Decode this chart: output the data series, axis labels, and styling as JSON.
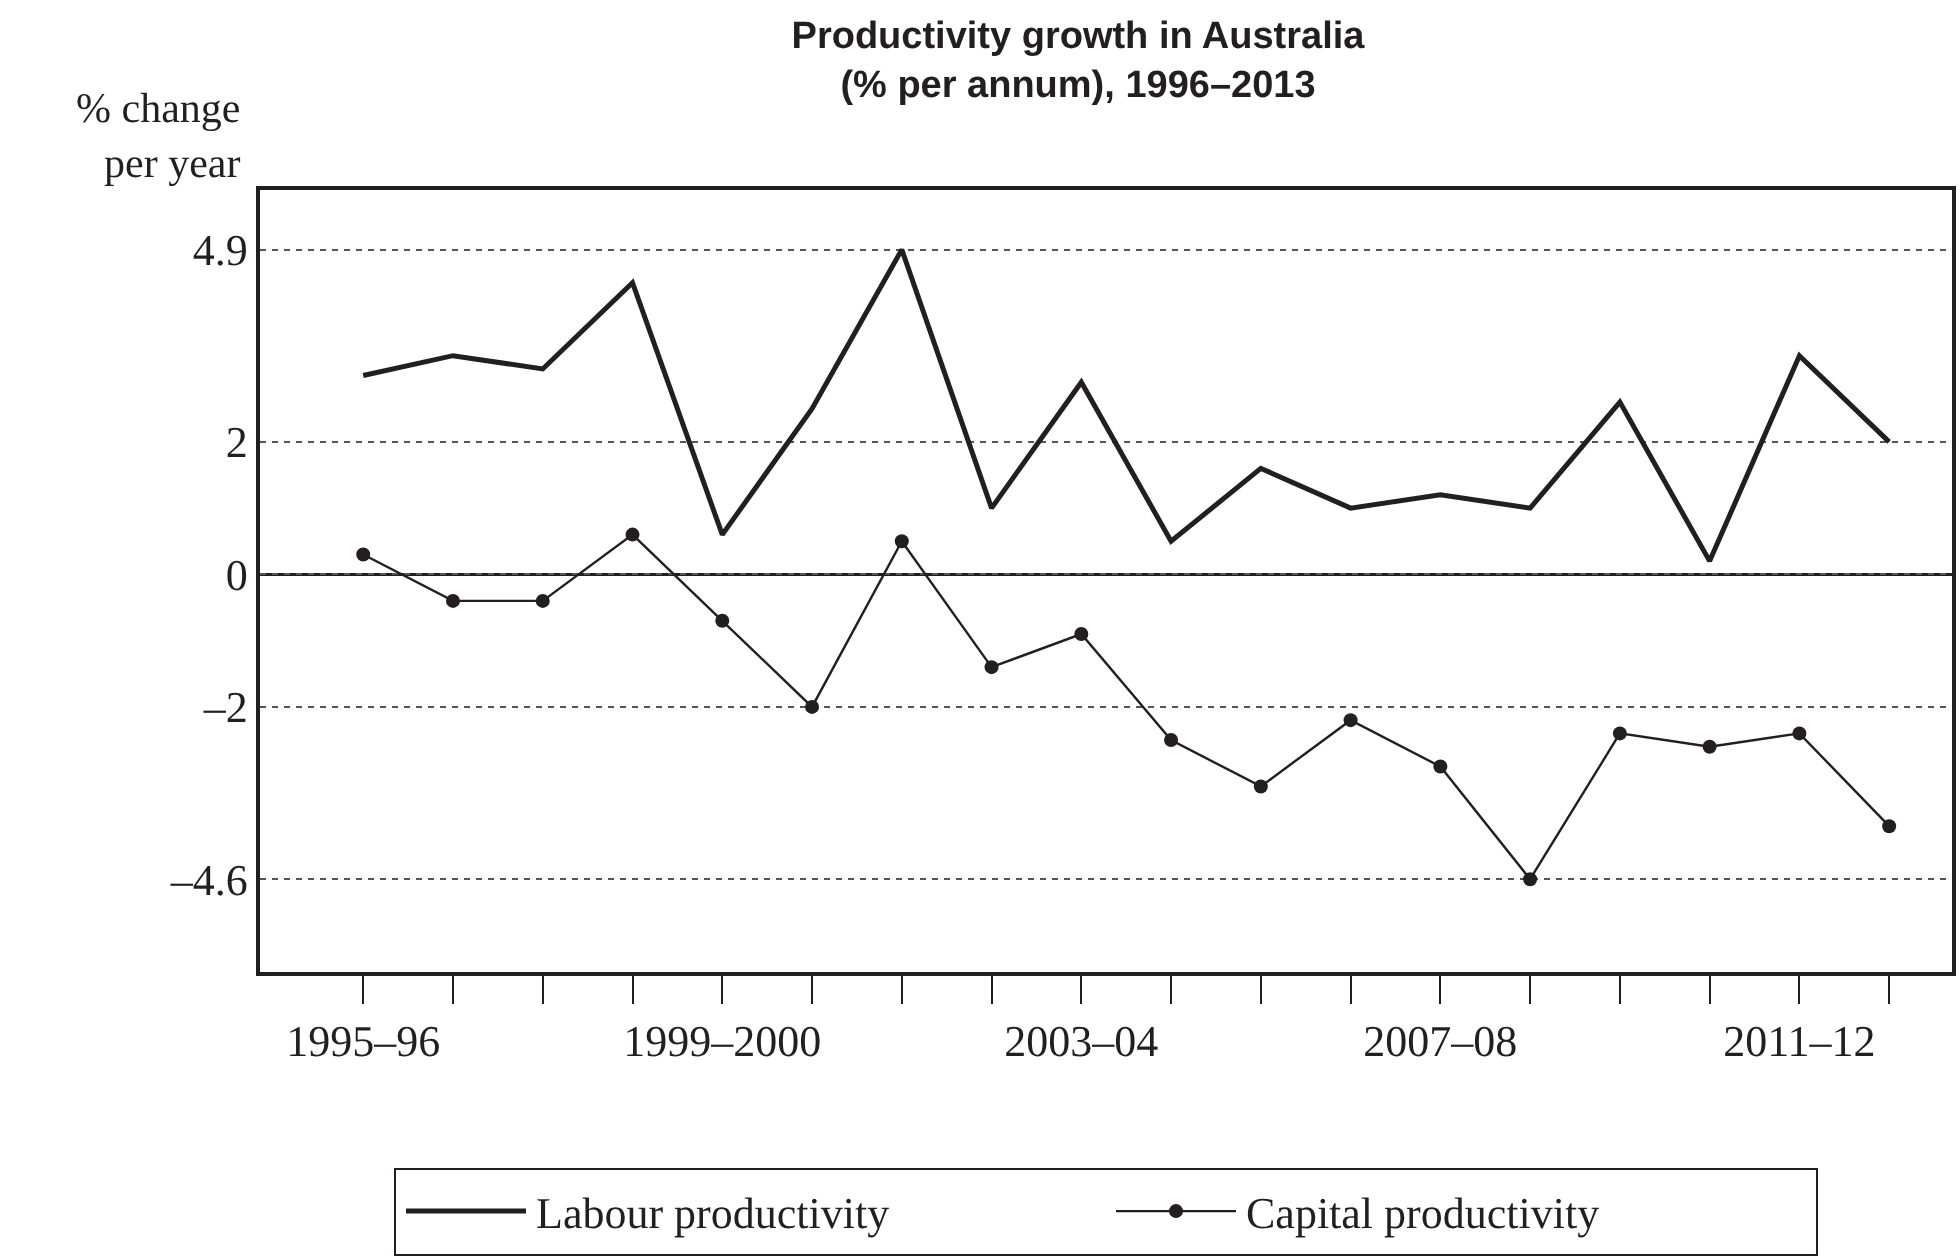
{
  "chart_data": {
    "type": "line",
    "title": "Productivity growth in Australia\n(% per annum), 1996–2013",
    "ylabel": "% change\nper year",
    "categories": [
      "1995–96",
      null,
      null,
      null,
      "1999–2000",
      null,
      null,
      null,
      "2003–04",
      null,
      null,
      null,
      "2007–08",
      null,
      null,
      null,
      "2011–12",
      null
    ],
    "series": [
      {
        "name": "Labour productivity",
        "color": "#231f20",
        "marker": "none",
        "values": [
          3.0,
          3.3,
          3.1,
          4.4,
          0.6,
          2.5,
          4.9,
          1.0,
          2.9,
          0.5,
          1.6,
          1.0,
          1.2,
          1.0,
          2.6,
          0.2,
          3.3,
          2.0
        ]
      },
      {
        "name": "Capital productivity",
        "color": "#231f20",
        "marker": "circle",
        "values": [
          0.3,
          -0.4,
          -0.4,
          0.6,
          -0.7,
          -2.0,
          0.5,
          -1.4,
          -0.9,
          -2.5,
          -3.2,
          -2.2,
          -2.9,
          -4.6,
          -2.4,
          -2.6,
          -2.4,
          -3.8
        ]
      }
    ],
    "ylim": [
      -6.0,
      5.8
    ],
    "yticks": [
      4.9,
      2,
      0,
      {
        "value": -2,
        "label": "–2"
      },
      {
        "value": -4.6,
        "label": "–4.6"
      }
    ],
    "grid": "y",
    "legend": "bottom",
    "line_style": "solid",
    "ref_lines": [
      {
        "axis": "y",
        "value": 0,
        "color": "#231f20",
        "line_style": "solid"
      }
    ]
  }
}
